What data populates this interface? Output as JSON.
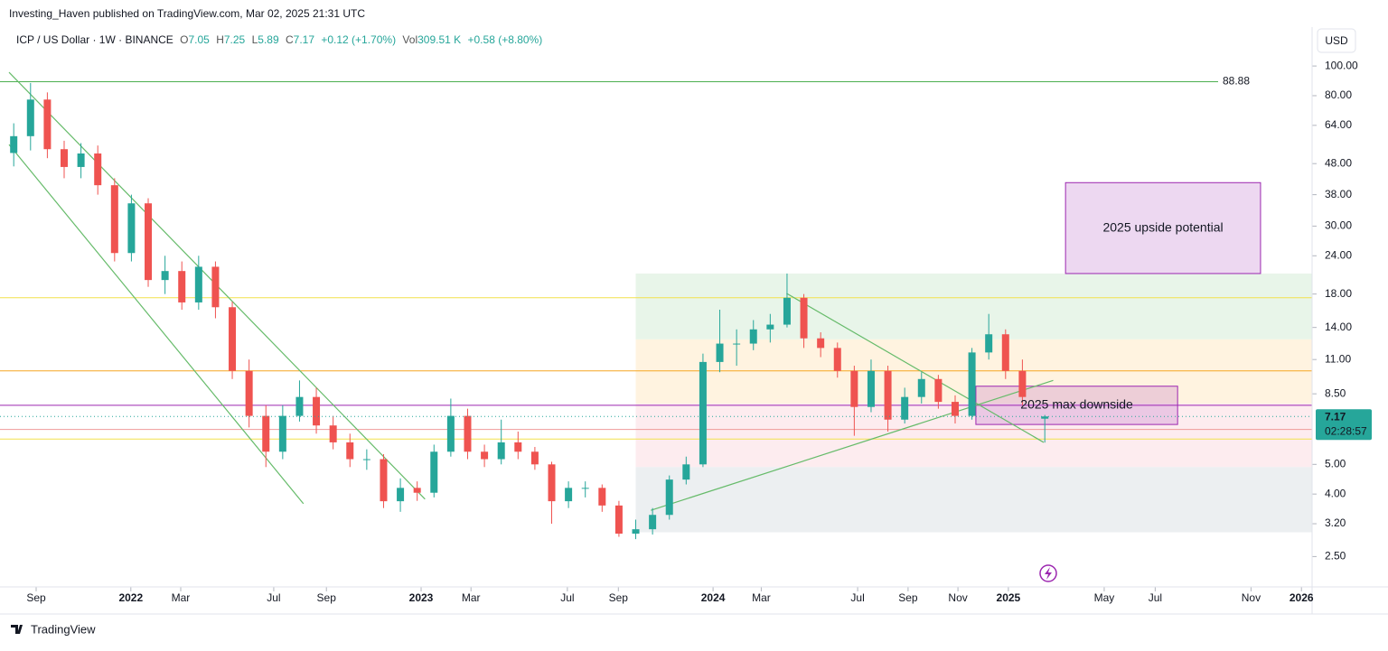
{
  "header": {
    "published": "Investing_Haven published on TradingView.com, Mar 02, 2025 21:31 UTC",
    "symbol": "ICP / US Dollar · 1W · BINANCE",
    "ohlc_labels": [
      "O",
      "H",
      "L",
      "C"
    ],
    "change": "+0.12 (+1.70%)",
    "volume_label": "Vol",
    "volume": "309.51 K",
    "volume_change": "+0.58 (+8.80%)"
  },
  "currency": "USD",
  "countdown": "02:28:57",
  "footer": "TradingView",
  "chart_data": {
    "type": "candlestick",
    "log_scale": true,
    "up_color": "#26a69a",
    "down_color": "#ef5350",
    "candles": {
      "x": [
        -4,
        -1,
        2,
        5,
        8,
        11,
        14,
        17,
        20,
        23,
        26,
        29,
        32,
        35,
        38,
        41,
        44,
        47,
        50,
        53,
        56,
        59,
        62,
        65,
        68,
        71,
        74,
        77,
        80,
        83,
        86,
        89,
        92,
        95,
        98,
        101,
        104,
        107,
        110,
        113,
        116,
        119,
        122,
        125,
        128,
        131,
        134,
        137,
        140,
        143,
        146,
        149,
        152,
        155,
        158,
        161,
        164,
        167,
        170,
        173,
        176,
        180
      ],
      "open": [
        52,
        59,
        77.7,
        53.5,
        46.8,
        51.8,
        40.8,
        24.5,
        35.6,
        20.0,
        21.4,
        16.9,
        22.1,
        16.3,
        10.1,
        7.2,
        5.5,
        7.2,
        8.3,
        6.7,
        5.9,
        5.2,
        5.2,
        3.79,
        4.19,
        4.04,
        5.5,
        7.2,
        5.5,
        5.2,
        5.9,
        5.5,
        5.0,
        3.79,
        4.19,
        4.19,
        3.67,
        2.97,
        3.07,
        3.42,
        4.46,
        5.0,
        10.8,
        12.4,
        12.4,
        13.8,
        14.3,
        17.5,
        12.9,
        12.0,
        10.1,
        7.7,
        10.1,
        7.0,
        8.3,
        9.5,
        8.0,
        7.2,
        11.6,
        13.3,
        10.1,
        7.05
      ],
      "high": [
        65,
        88,
        82,
        57,
        56,
        55,
        43,
        38,
        37,
        24,
        23,
        24,
        23,
        17,
        11,
        7.8,
        7.8,
        9.4,
        8.9,
        7.2,
        6.3,
        5.6,
        5.4,
        4.5,
        4.4,
        5.8,
        8.2,
        7.6,
        5.8,
        7.0,
        6.4,
        5.7,
        5.1,
        4.4,
        4.4,
        4.3,
        3.8,
        3.3,
        3.6,
        4.6,
        5.3,
        11.5,
        16,
        13.8,
        14.8,
        15.5,
        21,
        18,
        13.5,
        12.5,
        10.5,
        11,
        10.5,
        8.9,
        10,
        9.8,
        8.4,
        12,
        15.5,
        13.8,
        11,
        7.25
      ],
      "low": [
        47,
        53,
        50,
        43,
        43,
        38,
        23,
        23,
        19,
        18,
        16,
        16,
        15,
        9.5,
        6.6,
        4.9,
        5.2,
        6.9,
        6.3,
        5.6,
        4.9,
        4.8,
        3.6,
        3.5,
        3.8,
        3.9,
        5.3,
        5.2,
        4.9,
        5.0,
        5.2,
        4.8,
        3.2,
        3.6,
        3.9,
        3.5,
        2.9,
        2.85,
        2.95,
        3.3,
        4.3,
        4.9,
        10,
        10.5,
        11.8,
        12.5,
        14,
        12,
        11.2,
        9.6,
        6.2,
        7.4,
        6.4,
        6.8,
        7.9,
        7.6,
        6.8,
        7.0,
        11,
        9.5,
        7.8,
        5.89
      ],
      "close": [
        59,
        77.7,
        53.5,
        46.8,
        51.8,
        40.8,
        24.5,
        35.6,
        20.0,
        21.4,
        16.9,
        22.1,
        16.3,
        10.1,
        7.2,
        5.5,
        7.2,
        8.3,
        6.7,
        5.9,
        5.2,
        5.2,
        3.79,
        4.19,
        4.04,
        5.5,
        7.2,
        5.5,
        5.2,
        5.9,
        5.5,
        5.0,
        3.79,
        4.19,
        4.19,
        3.67,
        2.97,
        3.07,
        3.42,
        4.46,
        5.0,
        10.8,
        12.4,
        12.4,
        13.8,
        14.3,
        17.5,
        12.9,
        12.0,
        10.1,
        7.7,
        10.1,
        7.0,
        8.3,
        9.5,
        8.0,
        7.2,
        11.6,
        13.3,
        10.1,
        8.3,
        7.17
      ]
    },
    "xlim": [
      -6.45,
      227.7
    ],
    "ylim": [
      1.99,
      134
    ],
    "xticks": [
      {
        "value": 0,
        "label": "Sep"
      },
      {
        "value": 16.9,
        "label": "2022"
      },
      {
        "value": 25.8,
        "label": "Mar"
      },
      {
        "value": 42.4,
        "label": "Jul"
      },
      {
        "value": 51.8,
        "label": "Sep"
      },
      {
        "value": 68.7,
        "label": "2023"
      },
      {
        "value": 77.6,
        "label": "Mar"
      },
      {
        "value": 94.8,
        "label": "Jul"
      },
      {
        "value": 103.9,
        "label": "Sep"
      },
      {
        "value": 120.8,
        "label": "2024"
      },
      {
        "value": 129.4,
        "label": "Mar"
      },
      {
        "value": 146.6,
        "label": "Jul"
      },
      {
        "value": 155.6,
        "label": "Sep"
      },
      {
        "value": 164.5,
        "label": "Nov"
      },
      {
        "value": 173.5,
        "label": "2025"
      },
      {
        "value": 190.6,
        "label": "May"
      },
      {
        "value": 199.7,
        "label": "Jul"
      },
      {
        "value": 216.8,
        "label": "Nov"
      },
      {
        "value": 225.8,
        "label": "2026"
      }
    ],
    "yticks": [
      {
        "value": 100,
        "label": "100.00"
      },
      {
        "value": 80,
        "label": "80.00"
      },
      {
        "value": 64,
        "label": "64.00"
      },
      {
        "value": 48,
        "label": "48.00"
      },
      {
        "value": 38,
        "label": "38.00"
      },
      {
        "value": 30,
        "label": "30.00"
      },
      {
        "value": 24,
        "label": "24.00"
      },
      {
        "value": 18,
        "label": "18.00"
      },
      {
        "value": 14,
        "label": "14.00"
      },
      {
        "value": 11,
        "label": "11.00"
      },
      {
        "value": 8.5,
        "label": "8.50"
      },
      {
        "value": 5,
        "label": "5.00"
      },
      {
        "value": 4,
        "label": "4.00"
      },
      {
        "value": 3.2,
        "label": "3.20"
      },
      {
        "value": 2.5,
        "label": "2.50"
      }
    ],
    "target": {
      "value": 88.88,
      "color": "#4caf50"
    },
    "levels": [
      {
        "value": 17.5,
        "color": "#f2e14c"
      },
      {
        "value": 6.05,
        "color": "#f2e14c"
      },
      {
        "value": 10.1,
        "color": "#f5a623"
      },
      {
        "value": 7.8,
        "color": "#9c27b0"
      },
      {
        "value": 6.5,
        "color": "#ef9a9a"
      }
    ],
    "zones": [
      {
        "x": 107,
        "from": 21,
        "to": 12.8,
        "color": "#e8f5e9"
      },
      {
        "x": 107,
        "from": 12.8,
        "to": 7.9,
        "color": "#fff3e0"
      },
      {
        "x": 107,
        "from": 7.9,
        "to": 4.9,
        "color": "#fdecef"
      },
      {
        "x": 107,
        "from": 4.9,
        "to": 3.0,
        "color": "#eceff1"
      }
    ],
    "boxes": [
      {
        "text": "2025 upside potential",
        "x": [
          183.7,
          218.5
        ],
        "y": [
          41.6,
          21.0
        ]
      },
      {
        "text": "2025 max downside",
        "x": [
          167.7,
          203.7
        ],
        "y": [
          9.0,
          6.75
        ]
      }
    ],
    "trendlines": [
      {
        "x": [
          -4.84,
          69.4
        ],
        "y": [
          95.4,
          3.85
        ]
      },
      {
        "x": [
          -4.84,
          47.7
        ],
        "y": [
          55.4,
          3.72
        ]
      },
      {
        "x": [
          109.7,
          181.5
        ],
        "y": [
          3.54,
          9.4
        ]
      },
      {
        "x": [
          133.9,
          179.8
        ],
        "y": [
          18.1,
          5.9
        ]
      }
    ],
    "trend_color": "#66bb6a"
  }
}
